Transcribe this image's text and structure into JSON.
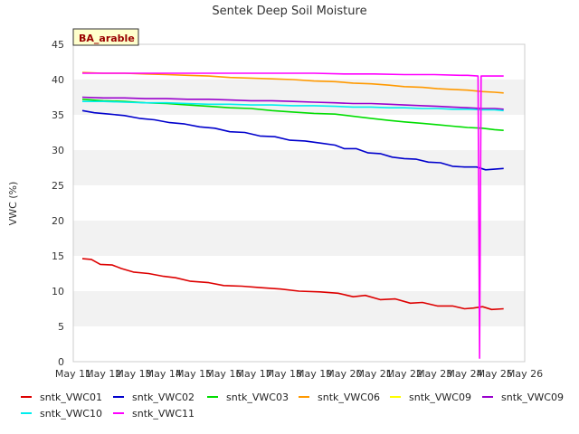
{
  "chart_data": {
    "type": "line",
    "title": "Sentek Deep Soil Moisture",
    "site_label": "BA_arable",
    "xlabel": "",
    "ylabel": "VWC (%)",
    "xlim": [
      11,
      26
    ],
    "ylim": [
      0,
      45
    ],
    "x_ticks": [
      11,
      12,
      13,
      14,
      15,
      16,
      17,
      18,
      19,
      20,
      21,
      22,
      23,
      24,
      25,
      26
    ],
    "x_tick_labels": [
      "May 11",
      "May 12",
      "May 13",
      "May 14",
      "May 15",
      "May 16",
      "May 17",
      "May 18",
      "May 19",
      "May 20",
      "May 21",
      "May 22",
      "May 23",
      "May 24",
      "May 25",
      "May 26"
    ],
    "y_ticks": [
      0,
      5,
      10,
      15,
      20,
      25,
      30,
      35,
      40,
      45
    ],
    "y_tick_labels": [
      "0",
      "5",
      "10",
      "15",
      "20",
      "25",
      "30",
      "35",
      "40",
      "45"
    ],
    "grid": "horizontal bands",
    "legend_position": "bottom",
    "series": [
      {
        "name": "sntk_VWC01",
        "color": "#dd0000",
        "x": [
          11.3,
          11.6,
          11.9,
          12.3,
          12.6,
          13.0,
          13.5,
          14.0,
          14.4,
          14.9,
          15.5,
          16.0,
          16.6,
          17.2,
          17.9,
          18.5,
          19.2,
          19.8,
          20.3,
          20.7,
          21.2,
          21.7,
          22.2,
          22.6,
          23.1,
          23.6,
          24.0,
          24.3,
          24.6,
          24.9,
          25.3
        ],
        "y": [
          14.6,
          14.5,
          13.8,
          13.7,
          13.2,
          12.7,
          12.5,
          12.1,
          11.9,
          11.4,
          11.2,
          10.8,
          10.7,
          10.5,
          10.3,
          10.0,
          9.9,
          9.7,
          9.2,
          9.4,
          8.8,
          8.9,
          8.3,
          8.4,
          7.9,
          7.9,
          7.5,
          7.6,
          7.8,
          7.4,
          7.5
        ]
      },
      {
        "name": "sntk_VWC02",
        "color": "#0000cc",
        "x": [
          11.3,
          11.7,
          12.2,
          12.7,
          13.2,
          13.7,
          14.2,
          14.7,
          15.2,
          15.7,
          16.2,
          16.7,
          17.2,
          17.7,
          18.2,
          18.7,
          19.2,
          19.7,
          20.0,
          20.4,
          20.8,
          21.2,
          21.6,
          22.0,
          22.4,
          22.8,
          23.2,
          23.6,
          24.0,
          24.4,
          24.7,
          25.0,
          25.3
        ],
        "y": [
          35.6,
          35.3,
          35.1,
          34.9,
          34.5,
          34.3,
          33.9,
          33.7,
          33.3,
          33.1,
          32.6,
          32.5,
          32.0,
          31.9,
          31.4,
          31.3,
          31.0,
          30.7,
          30.2,
          30.2,
          29.6,
          29.5,
          29.0,
          28.8,
          28.7,
          28.3,
          28.2,
          27.7,
          27.6,
          27.6,
          27.2,
          27.3,
          27.4
        ]
      },
      {
        "name": "sntk_VWC03",
        "color": "#00dd00",
        "x": [
          11.3,
          12.0,
          12.7,
          13.4,
          14.1,
          14.8,
          15.5,
          16.2,
          16.9,
          17.6,
          18.3,
          19.0,
          19.7,
          20.3,
          20.9,
          21.5,
          22.0,
          22.6,
          23.1,
          23.6,
          24.1,
          24.6,
          25.0,
          25.3
        ],
        "y": [
          37.2,
          37.0,
          36.9,
          36.7,
          36.6,
          36.4,
          36.2,
          36.0,
          35.9,
          35.6,
          35.4,
          35.2,
          35.1,
          34.8,
          34.5,
          34.2,
          34.0,
          33.8,
          33.6,
          33.4,
          33.2,
          33.1,
          32.9,
          32.8
        ]
      },
      {
        "name": "sntk_VWC06",
        "color": "#ff9900",
        "x": [
          11.3,
          12.0,
          12.7,
          13.4,
          14.1,
          14.8,
          15.5,
          16.2,
          16.9,
          17.6,
          18.3,
          19.0,
          19.7,
          20.3,
          20.9,
          21.5,
          22.0,
          22.6,
          23.1,
          23.6,
          24.1,
          24.6,
          25.0,
          25.3
        ],
        "y": [
          41.0,
          40.9,
          40.9,
          40.8,
          40.7,
          40.6,
          40.5,
          40.3,
          40.2,
          40.1,
          40.0,
          39.8,
          39.7,
          39.5,
          39.4,
          39.2,
          39.0,
          38.9,
          38.7,
          38.6,
          38.5,
          38.3,
          38.2,
          38.1
        ]
      },
      {
        "name": "sntk_VWC09",
        "color": "#ffff00",
        "x": [],
        "y": []
      },
      {
        "name": "sntk_VWC09",
        "color": "#9900cc",
        "x": [
          11.3,
          12.0,
          12.7,
          13.4,
          14.1,
          14.8,
          15.5,
          16.2,
          16.9,
          17.6,
          18.3,
          19.0,
          19.7,
          20.3,
          20.9,
          21.5,
          22.0,
          22.6,
          23.1,
          23.6,
          24.1,
          24.6,
          25.0,
          25.3
        ],
        "y": [
          37.5,
          37.4,
          37.4,
          37.3,
          37.3,
          37.2,
          37.2,
          37.1,
          37.0,
          37.0,
          36.9,
          36.8,
          36.7,
          36.6,
          36.6,
          36.5,
          36.4,
          36.3,
          36.2,
          36.1,
          36.0,
          35.9,
          35.9,
          35.8
        ]
      },
      {
        "name": "sntk_VWC10",
        "color": "#00eeee",
        "x": [
          11.3,
          12.0,
          12.7,
          13.4,
          14.1,
          14.8,
          15.5,
          16.2,
          16.9,
          17.6,
          18.3,
          19.0,
          19.7,
          20.3,
          20.9,
          21.5,
          22.0,
          22.6,
          23.1,
          23.6,
          24.1,
          24.6,
          25.0,
          25.3
        ],
        "y": [
          36.9,
          36.9,
          36.8,
          36.7,
          36.7,
          36.6,
          36.5,
          36.5,
          36.4,
          36.4,
          36.3,
          36.3,
          36.2,
          36.1,
          36.1,
          36.0,
          36.0,
          35.9,
          35.9,
          35.8,
          35.8,
          35.7,
          35.7,
          35.6
        ]
      },
      {
        "name": "sntk_VWC11",
        "color": "#ff00ff",
        "x": [
          11.3,
          12.0,
          13.0,
          14.0,
          15.0,
          16.0,
          17.0,
          18.0,
          19.0,
          20.0,
          21.0,
          22.0,
          23.0,
          23.9,
          24.1,
          24.45,
          24.5,
          24.55,
          24.6,
          25.0,
          25.3
        ],
        "y": [
          40.9,
          40.9,
          40.9,
          40.9,
          40.9,
          40.9,
          40.9,
          40.9,
          40.9,
          40.8,
          40.8,
          40.7,
          40.7,
          40.6,
          40.6,
          40.5,
          0.5,
          40.5,
          40.5,
          40.5,
          40.5
        ]
      }
    ]
  }
}
